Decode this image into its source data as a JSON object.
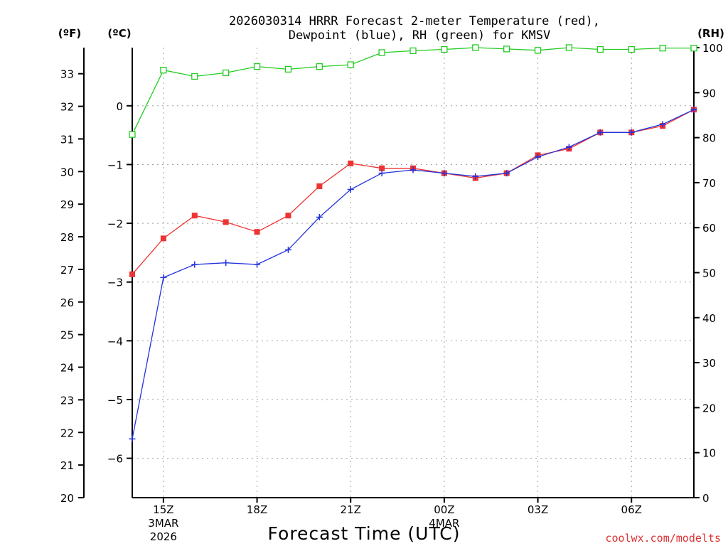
{
  "chart_data": {
    "type": "line",
    "title": "2026030314 HRRR Forecast 2-meter Temperature (red),",
    "subtitle": "Dewpoint (blue), RH (green) for KMSV",
    "xlabel": "Forecast Time (UTC)",
    "units": {
      "fahrenheit": "(ºF)",
      "celsius": "(ºC)",
      "rh": "(RH)"
    },
    "x_hours": [
      14,
      15,
      16,
      17,
      18,
      19,
      20,
      21,
      22,
      23,
      24,
      25,
      26,
      27,
      28,
      29,
      30,
      31,
      32
    ],
    "x_ticks": [
      {
        "hour": 15,
        "label": "15Z",
        "sub1": "3MAR",
        "sub2": "2026"
      },
      {
        "hour": 18,
        "label": "18Z",
        "sub1": "",
        "sub2": ""
      },
      {
        "hour": 21,
        "label": "21Z",
        "sub1": "",
        "sub2": ""
      },
      {
        "hour": 24,
        "label": "00Z",
        "sub1": "4MAR",
        "sub2": ""
      },
      {
        "hour": 27,
        "label": "03Z",
        "sub1": "",
        "sub2": ""
      },
      {
        "hour": 30,
        "label": "06Z",
        "sub1": "",
        "sub2": ""
      }
    ],
    "x_range": [
      14,
      32
    ],
    "fahrenheit_axis": {
      "range": [
        20,
        33.8
      ],
      "ticks": [
        20,
        21,
        22,
        23,
        24,
        25,
        26,
        27,
        28,
        29,
        30,
        31,
        32,
        33
      ]
    },
    "celsius_axis": {
      "range": [
        -6.67,
        0.99
      ],
      "ticks": [
        -6,
        -5,
        -4,
        -3,
        -2,
        -1,
        0
      ],
      "tick_labels": [
        "−6",
        "−5",
        "−4",
        "−3",
        "−2",
        "−1",
        "0"
      ]
    },
    "rh_axis": {
      "range": [
        0,
        100
      ],
      "ticks": [
        0,
        10,
        20,
        30,
        40,
        50,
        60,
        70,
        80,
        90,
        100
      ]
    },
    "series": [
      {
        "name": "Temperature",
        "units": "F",
        "color": "#ee3333",
        "marker": "filled-square",
        "values": [
          26.85,
          27.95,
          28.65,
          28.45,
          28.15,
          28.65,
          29.55,
          30.25,
          30.1,
          30.1,
          29.95,
          29.8,
          29.95,
          30.5,
          30.7,
          31.2,
          31.2,
          31.4,
          31.9
        ]
      },
      {
        "name": "Dewpoint",
        "units": "F",
        "color": "#2233dd",
        "marker": "plus",
        "values": [
          21.8,
          26.75,
          27.15,
          27.2,
          27.15,
          27.6,
          28.6,
          29.45,
          29.95,
          30.05,
          29.95,
          29.85,
          29.95,
          30.45,
          30.75,
          31.2,
          31.2,
          31.45,
          31.9
        ]
      },
      {
        "name": "RH",
        "units": "%",
        "color": "#22cc22",
        "marker": "open-square",
        "values": [
          80.7,
          95.0,
          93.6,
          94.4,
          95.8,
          95.2,
          95.8,
          96.2,
          98.9,
          99.3,
          99.6,
          100.0,
          99.7,
          99.4,
          100.0,
          99.6,
          99.6,
          99.9,
          99.9
        ]
      }
    ]
  },
  "credit": "coolwx.com/modelts",
  "colors": {
    "credit": "#dd3333",
    "grid": "#a0a0a0"
  }
}
